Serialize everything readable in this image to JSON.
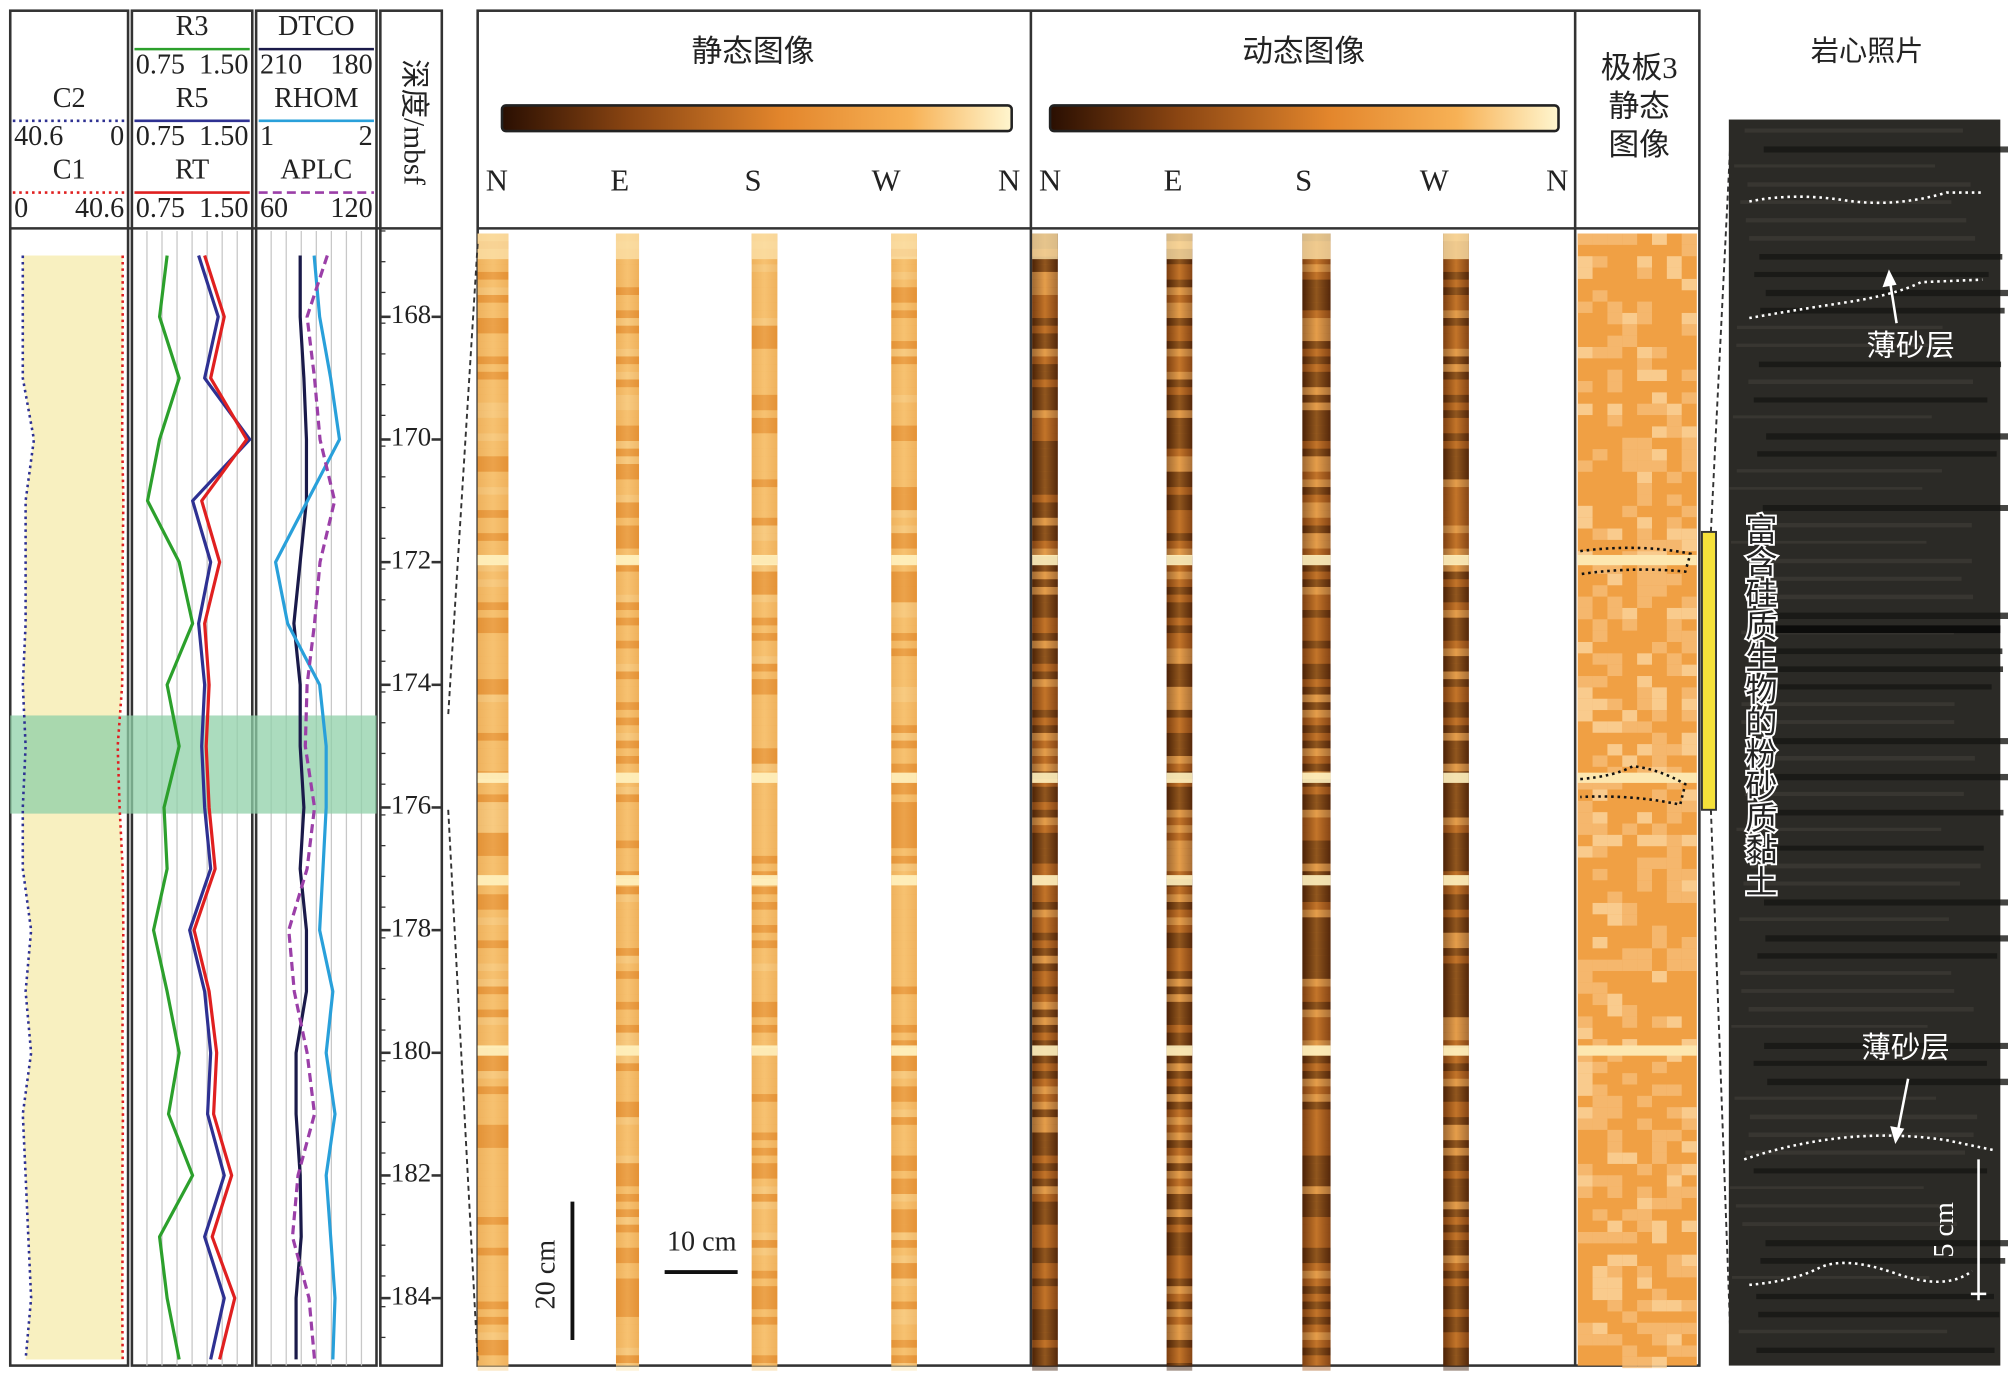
{
  "chart_data": {
    "type": "well-log",
    "depth_label": "深度/mbsf",
    "ylim": [
      166.6,
      185.1
    ],
    "yticks": [
      168,
      170,
      172,
      174,
      176,
      178,
      180,
      182,
      184
    ],
    "highlight": [
      174.5,
      176.1
    ],
    "highlight_color": "#8fd0a8",
    "depth": [
      167,
      168,
      169,
      170,
      171,
      172,
      173,
      174,
      175,
      176,
      177,
      178,
      179,
      180,
      181,
      182,
      183,
      184,
      185
    ],
    "tracks": [
      {
        "fill": "#f8f0c0",
        "series": [
          {
            "name": "C2",
            "color": "#2e3192",
            "dash": "dotted",
            "xlim": [
              40.6,
              0
            ],
            "values": [
              37,
              37,
              37,
              33,
              36,
              36,
              36,
              37,
              36,
              37,
              37,
              34,
              36,
              34,
              37,
              36,
              35,
              34,
              36
            ]
          },
          {
            "name": "C1",
            "color": "#e02020",
            "dash": "dotted",
            "xlim": [
              0,
              40.6
            ],
            "values": [
              39.6,
              39.6,
              39.5,
              39.4,
              39.8,
              39.6,
              39.5,
              39.4,
              37.8,
              38.5,
              39.6,
              39.8,
              39.6,
              39.5,
              39.7,
              39.5,
              39.6,
              39.4,
              39.6
            ]
          }
        ]
      },
      {
        "series": [
          {
            "name": "R3",
            "color": "#2ca02c",
            "dash": "solid",
            "xlim": [
              0.75,
              {
                "value": 1.5,
                "label": "1.50"
              }
            ],
            "values": [
              0.95,
              0.9,
              1.03,
              0.9,
              0.82,
              1.03,
              1.12,
              0.95,
              1.03,
              0.93,
              0.95,
              0.86,
              0.95,
              1.03,
              0.96,
              1.12,
              0.9,
              0.95,
              1.03
            ]
          },
          {
            "name": "R5",
            "color": "#2e3192",
            "dash": "solid",
            "xlim": [
              0.75,
              {
                "value": 1.5,
                "label": "1.50"
              }
            ],
            "values": [
              1.16,
              1.29,
              1.2,
              1.5,
              1.12,
              1.24,
              1.16,
              1.2,
              1.18,
              1.2,
              1.24,
              1.1,
              1.2,
              1.24,
              1.22,
              1.33,
              1.2,
              1.33,
              1.24
            ]
          },
          {
            "name": "RT",
            "color": "#e02020",
            "dash": "solid",
            "xlim": [
              0.75,
              {
                "value": 1.5,
                "label": "1.50"
              }
            ],
            "values": [
              1.2,
              1.33,
              1.24,
              1.48,
              1.18,
              1.3,
              1.2,
              1.23,
              1.21,
              1.23,
              1.27,
              1.13,
              1.23,
              1.28,
              1.26,
              1.38,
              1.25,
              1.4,
              1.3
            ]
          }
        ]
      },
      {
        "series": [
          {
            "name": "DTCO",
            "color": "#1a1a4a",
            "dash": "solid",
            "xlim": [
              210,
              180
            ],
            "values": [
              199.4,
              199.4,
              198.4,
              197.7,
              197.7,
              199.4,
              201.1,
              199.4,
              199.4,
              198.4,
              199.4,
              197.7,
              197.7,
              200.5,
              200.5,
              199.4,
              199.1,
              200.5,
              200.5
            ]
          },
          {
            "name": "RHOM",
            "color": "#29a0da",
            "dash": "solid",
            "xlim": [
              1,
              2
            ],
            "values": [
              1.48,
              1.53,
              1.63,
              1.71,
              1.42,
              1.13,
              1.24,
              1.53,
              1.59,
              1.59,
              1.56,
              1.53,
              1.65,
              1.59,
              1.67,
              1.59,
              1.63,
              1.67,
              1.65
            ]
          },
          {
            "name": "APLC",
            "color": "#9b3fa8",
            "dash": "dashed",
            "xlim": [
              60,
              120
            ],
            "values": [
              96,
              85,
              89,
              92,
              100,
              92,
              89,
              85,
              84,
              89,
              85,
              75,
              78,
              85,
              89,
              80,
              77,
              86,
              89
            ]
          }
        ]
      }
    ]
  },
  "images": {
    "static_title": "静态图像",
    "dynamic_title": "动态图像",
    "directions": [
      "N",
      "E",
      "S",
      "W",
      "N"
    ],
    "pad_title": [
      "极板3",
      "静态",
      "图像"
    ],
    "core_title": "岩心照片",
    "scale_vertical": "20 cm",
    "scale_horizontal": "10 cm",
    "core_scale": "5 cm",
    "thin_sand_upper": "薄砂层",
    "thin_sand_lower": "薄砂层",
    "lithology": "富含硅质生物的粉砂质黏土"
  }
}
